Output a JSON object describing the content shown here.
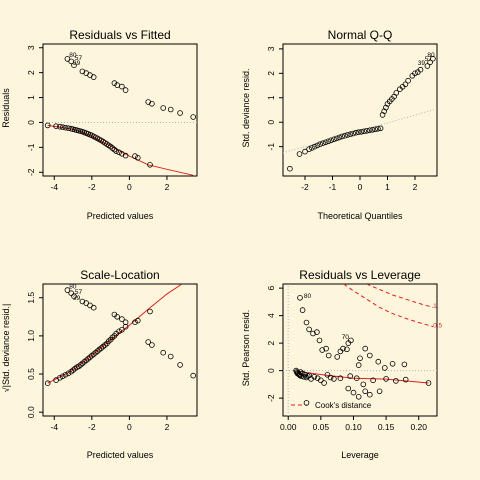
{
  "chart_data": [
    {
      "type": "scatter",
      "title": "Residuals vs Fitted",
      "xlabel": "Predicted values",
      "ylabel": "Residuals",
      "xlim": [
        -4.6,
        3.6
      ],
      "ylim": [
        -2.15,
        3.15
      ],
      "xticks": [
        -4,
        -2,
        0,
        2
      ],
      "yticks": [
        -2,
        -1,
        0,
        1,
        2,
        3
      ],
      "points": [
        [
          -4.35,
          -0.12
        ],
        [
          -3.9,
          -0.15
        ],
        [
          -3.7,
          -0.17
        ],
        [
          -3.55,
          -0.19
        ],
        [
          -3.4,
          -0.21
        ],
        [
          -3.25,
          -0.23
        ],
        [
          -3.1,
          -0.25
        ],
        [
          -3.0,
          -0.27
        ],
        [
          -2.9,
          -0.29
        ],
        [
          -2.8,
          -0.31
        ],
        [
          -2.7,
          -0.33
        ],
        [
          -2.6,
          -0.35
        ],
        [
          -2.5,
          -0.37
        ],
        [
          -2.4,
          -0.4
        ],
        [
          -2.3,
          -0.43
        ],
        [
          -2.2,
          -0.46
        ],
        [
          -2.1,
          -0.49
        ],
        [
          -2.0,
          -0.52
        ],
        [
          -1.9,
          -0.56
        ],
        [
          -1.8,
          -0.6
        ],
        [
          -1.7,
          -0.64
        ],
        [
          -1.6,
          -0.68
        ],
        [
          -1.5,
          -0.72
        ],
        [
          -1.4,
          -0.77
        ],
        [
          -1.3,
          -0.82
        ],
        [
          -1.2,
          -0.87
        ],
        [
          -1.1,
          -0.92
        ],
        [
          -1.0,
          -0.97
        ],
        [
          -0.9,
          -1.03
        ],
        [
          -0.8,
          -1.09
        ],
        [
          -0.7,
          -1.15
        ],
        [
          -0.55,
          -1.2
        ],
        [
          -0.4,
          -1.26
        ],
        [
          -0.2,
          -1.33
        ],
        [
          0.3,
          -1.35
        ],
        [
          0.45,
          -1.42
        ],
        [
          1.1,
          -1.7
        ],
        [
          -2.5,
          2.05
        ],
        [
          -2.3,
          1.98
        ],
        [
          -2.1,
          1.9
        ],
        [
          -1.9,
          1.82
        ],
        [
          -0.8,
          1.58
        ],
        [
          -0.65,
          1.5
        ],
        [
          -0.4,
          1.44
        ],
        [
          -0.2,
          1.3
        ],
        [
          1.0,
          0.82
        ],
        [
          1.2,
          0.75
        ],
        [
          1.8,
          0.58
        ],
        [
          2.2,
          0.52
        ],
        [
          2.7,
          0.38
        ],
        [
          3.4,
          0.22
        ],
        [
          -3.3,
          2.55
        ],
        [
          -3.1,
          2.45
        ],
        [
          -2.95,
          2.3
        ]
      ],
      "lines": [
        {
          "name": "fit",
          "color": "#e02020",
          "style": "solid",
          "points": [
            [
              -4.35,
              -0.12
            ],
            [
              -3.0,
              -0.27
            ],
            [
              -2.0,
              -0.55
            ],
            [
              -1.0,
              -0.95
            ],
            [
              0.0,
              -1.35
            ],
            [
              1.0,
              -1.7
            ],
            [
              2.0,
              -1.88
            ],
            [
              3.4,
              -2.12
            ]
          ]
        },
        {
          "name": "zero",
          "color": "#b4b4b4",
          "style": "dotted",
          "points": [
            [
              -4.6,
              0
            ],
            [
              3.6,
              0
            ]
          ]
        }
      ],
      "annotations": [
        {
          "text": "80",
          "x": -3.2,
          "y": 2.63
        },
        {
          "text": "57",
          "x": -2.9,
          "y": 2.5
        },
        {
          "text": "39",
          "x": -3.0,
          "y": 2.3
        }
      ]
    },
    {
      "type": "scatter",
      "title": "Normal Q-Q",
      "xlabel": "Theoretical Quantiles",
      "ylabel": "Std. deviance resid.",
      "xlim": [
        -2.8,
        2.8
      ],
      "ylim": [
        -2.2,
        3.2
      ],
      "xticks": [
        -2,
        -1,
        0,
        1,
        2
      ],
      "yticks": [
        -1,
        0,
        1,
        2,
        3
      ],
      "points": [
        [
          -2.55,
          -1.9
        ],
        [
          -2.2,
          -1.3
        ],
        [
          -2.0,
          -1.2
        ],
        [
          -1.85,
          -1.1
        ],
        [
          -1.75,
          -1.05
        ],
        [
          -1.65,
          -1.0
        ],
        [
          -1.55,
          -0.95
        ],
        [
          -1.45,
          -0.9
        ],
        [
          -1.35,
          -0.86
        ],
        [
          -1.25,
          -0.82
        ],
        [
          -1.15,
          -0.78
        ],
        [
          -1.05,
          -0.74
        ],
        [
          -0.95,
          -0.7
        ],
        [
          -0.85,
          -0.66
        ],
        [
          -0.75,
          -0.62
        ],
        [
          -0.65,
          -0.58
        ],
        [
          -0.55,
          -0.55
        ],
        [
          -0.45,
          -0.52
        ],
        [
          -0.35,
          -0.49
        ],
        [
          -0.25,
          -0.46
        ],
        [
          -0.15,
          -0.43
        ],
        [
          -0.05,
          -0.41
        ],
        [
          0.05,
          -0.39
        ],
        [
          0.15,
          -0.37
        ],
        [
          0.25,
          -0.35
        ],
        [
          0.35,
          -0.33
        ],
        [
          0.45,
          -0.31
        ],
        [
          0.55,
          -0.29
        ],
        [
          0.65,
          -0.27
        ],
        [
          0.75,
          -0.25
        ],
        [
          0.82,
          0.3
        ],
        [
          0.88,
          0.45
        ],
        [
          0.94,
          0.6
        ],
        [
          1.0,
          0.75
        ],
        [
          1.08,
          0.85
        ],
        [
          1.16,
          0.95
        ],
        [
          1.24,
          1.05
        ],
        [
          1.32,
          1.2
        ],
        [
          1.45,
          1.35
        ],
        [
          1.55,
          1.45
        ],
        [
          1.65,
          1.55
        ],
        [
          1.75,
          1.7
        ],
        [
          1.9,
          1.9
        ],
        [
          2.0,
          2.0
        ],
        [
          2.1,
          2.05
        ],
        [
          2.2,
          2.15
        ],
        [
          2.45,
          2.3
        ],
        [
          2.55,
          2.45
        ],
        [
          2.65,
          2.6
        ]
      ],
      "lines": [
        {
          "name": "qq-line",
          "color": "#b4b4b4",
          "style": "dotted",
          "points": [
            [
              -2.8,
              -1.25
            ],
            [
              2.8,
              0.55
            ]
          ]
        }
      ],
      "annotations": [
        {
          "text": "80",
          "x": 2.45,
          "y": 2.67
        },
        {
          "text": "57",
          "x": 2.35,
          "y": 2.5
        },
        {
          "text": "39",
          "x": 2.1,
          "y": 2.35
        }
      ]
    },
    {
      "type": "scatter",
      "title": "Scale-Location",
      "xlabel": "Predicted values",
      "ylabel": "√|Std. deviance resid.|",
      "xlim": [
        -4.6,
        3.6
      ],
      "ylim": [
        -0.05,
        1.68
      ],
      "xticks": [
        -4,
        -2,
        0,
        2
      ],
      "yticks": [
        0.0,
        0.5,
        1.0,
        1.5
      ],
      "points": [
        [
          -4.35,
          0.38
        ],
        [
          -3.9,
          0.42
        ],
        [
          -3.7,
          0.45
        ],
        [
          -3.55,
          0.47
        ],
        [
          -3.4,
          0.49
        ],
        [
          -3.25,
          0.51
        ],
        [
          -3.1,
          0.53
        ],
        [
          -3.0,
          0.55
        ],
        [
          -2.9,
          0.57
        ],
        [
          -2.8,
          0.59
        ],
        [
          -2.7,
          0.6
        ],
        [
          -2.6,
          0.62
        ],
        [
          -2.5,
          0.64
        ],
        [
          -2.4,
          0.66
        ],
        [
          -2.3,
          0.68
        ],
        [
          -2.2,
          0.7
        ],
        [
          -2.1,
          0.72
        ],
        [
          -2.0,
          0.74
        ],
        [
          -1.9,
          0.76
        ],
        [
          -1.8,
          0.78
        ],
        [
          -1.7,
          0.8
        ],
        [
          -1.6,
          0.82
        ],
        [
          -1.5,
          0.84
        ],
        [
          -1.4,
          0.86
        ],
        [
          -1.3,
          0.88
        ],
        [
          -1.2,
          0.9
        ],
        [
          -1.1,
          0.93
        ],
        [
          -1.0,
          0.95
        ],
        [
          -0.9,
          0.98
        ],
        [
          -0.8,
          1.0
        ],
        [
          -0.7,
          1.03
        ],
        [
          -0.55,
          1.06
        ],
        [
          -0.4,
          1.08
        ],
        [
          -0.2,
          1.12
        ],
        [
          0.3,
          1.18
        ],
        [
          0.45,
          1.2
        ],
        [
          1.1,
          1.32
        ],
        [
          -2.5,
          1.45
        ],
        [
          -2.3,
          1.43
        ],
        [
          -2.1,
          1.4
        ],
        [
          -1.9,
          1.37
        ],
        [
          -0.8,
          1.28
        ],
        [
          -0.65,
          1.25
        ],
        [
          -0.4,
          1.22
        ],
        [
          -0.2,
          1.18
        ],
        [
          1.0,
          0.92
        ],
        [
          1.2,
          0.88
        ],
        [
          1.8,
          0.78
        ],
        [
          2.2,
          0.73
        ],
        [
          2.7,
          0.62
        ],
        [
          3.4,
          0.48
        ],
        [
          -3.3,
          1.6
        ],
        [
          -3.1,
          1.56
        ],
        [
          -2.95,
          1.52
        ]
      ],
      "lines": [
        {
          "name": "smoother",
          "color": "#e02020",
          "style": "solid",
          "points": [
            [
              -4.35,
              0.38
            ],
            [
              -3.0,
              0.55
            ],
            [
              -2.0,
              0.74
            ],
            [
              -1.0,
              0.95
            ],
            [
              0.0,
              1.14
            ],
            [
              1.0,
              1.35
            ],
            [
              2.0,
              1.55
            ],
            [
              2.8,
              1.68
            ]
          ]
        }
      ],
      "annotations": [
        {
          "text": "80",
          "x": -3.2,
          "y": 1.62
        },
        {
          "text": "57",
          "x": -2.9,
          "y": 1.55
        },
        {
          "text": "39",
          "x": -3.0,
          "y": 1.47
        }
      ]
    },
    {
      "type": "scatter",
      "title": "Residuals vs Leverage",
      "xlabel": "Leverage",
      "ylabel": "Std. Pearson resid.",
      "xlim": [
        -0.008,
        0.228
      ],
      "ylim": [
        -3.3,
        6.3
      ],
      "xticks": [
        0.0,
        0.05,
        0.1,
        0.15,
        0.2
      ],
      "yticks": [
        -2,
        0,
        2,
        4,
        6
      ],
      "points": [
        [
          0.018,
          5.3
        ],
        [
          0.022,
          4.4
        ],
        [
          0.028,
          3.5
        ],
        [
          0.032,
          3.0
        ],
        [
          0.038,
          2.7
        ],
        [
          0.044,
          2.8
        ],
        [
          0.048,
          2.2
        ],
        [
          0.052,
          1.5
        ],
        [
          0.058,
          1.6
        ],
        [
          0.062,
          1.1
        ],
        [
          0.075,
          1.0
        ],
        [
          0.08,
          1.4
        ],
        [
          0.084,
          1.6
        ],
        [
          0.09,
          1.55
        ],
        [
          0.092,
          2.0
        ],
        [
          0.096,
          2.2
        ],
        [
          0.108,
          0.4
        ],
        [
          0.11,
          0.9
        ],
        [
          0.118,
          1.6
        ],
        [
          0.125,
          1.1
        ],
        [
          0.138,
          0.65
        ],
        [
          0.148,
          0.2
        ],
        [
          0.16,
          0.5
        ],
        [
          0.178,
          0.45
        ],
        [
          0.012,
          0.0
        ],
        [
          0.013,
          -0.1
        ],
        [
          0.014,
          -0.2
        ],
        [
          0.015,
          -0.15
        ],
        [
          0.016,
          -0.25
        ],
        [
          0.017,
          -0.3
        ],
        [
          0.018,
          -0.35
        ],
        [
          0.019,
          -0.1
        ],
        [
          0.02,
          -0.4
        ],
        [
          0.022,
          -0.2
        ],
        [
          0.024,
          -0.45
        ],
        [
          0.026,
          -0.3
        ],
        [
          0.028,
          -0.5
        ],
        [
          0.03,
          -0.4
        ],
        [
          0.032,
          -0.35
        ],
        [
          0.035,
          -0.6
        ],
        [
          0.04,
          -0.45
        ],
        [
          0.045,
          -0.55
        ],
        [
          0.05,
          -0.7
        ],
        [
          0.055,
          -0.9
        ],
        [
          0.06,
          -0.3
        ],
        [
          0.065,
          -0.5
        ],
        [
          0.07,
          -0.6
        ],
        [
          0.08,
          -0.55
        ],
        [
          0.095,
          -0.4
        ],
        [
          0.105,
          -0.55
        ],
        [
          0.115,
          -1.0
        ],
        [
          0.13,
          -0.7
        ],
        [
          0.15,
          -0.6
        ],
        [
          0.165,
          -0.75
        ],
        [
          0.18,
          -0.65
        ],
        [
          0.215,
          -0.9
        ],
        [
          0.092,
          -1.3
        ],
        [
          0.1,
          -1.6
        ],
        [
          0.108,
          -1.9
        ],
        [
          0.118,
          -1.5
        ],
        [
          0.125,
          -1.75
        ],
        [
          0.14,
          -1.5
        ],
        [
          0.028,
          -2.35
        ]
      ],
      "lines": [
        {
          "name": "smoother",
          "color": "#e02020",
          "style": "solid",
          "points": [
            [
              0.008,
              0.0
            ],
            [
              0.03,
              -0.15
            ],
            [
              0.06,
              -0.35
            ],
            [
              0.1,
              -0.55
            ],
            [
              0.15,
              -0.62
            ],
            [
              0.215,
              -0.9
            ]
          ]
        },
        {
          "name": "cooks-1",
          "color": "#e02020",
          "style": "dashed",
          "points": [
            [
              0.12,
              6.3
            ],
            [
              0.14,
              5.9
            ],
            [
              0.16,
              5.5
            ],
            [
              0.18,
              5.2
            ],
            [
              0.2,
              4.9
            ],
            [
              0.222,
              4.6
            ]
          ]
        },
        {
          "name": "cooks-0.5",
          "color": "#e02020",
          "style": "dashed",
          "points": [
            [
              0.085,
              6.3
            ],
            [
              0.1,
              5.8
            ],
            [
              0.12,
              5.2
            ],
            [
              0.14,
              4.6
            ],
            [
              0.16,
              4.15
            ],
            [
              0.18,
              3.8
            ],
            [
              0.2,
              3.5
            ],
            [
              0.222,
              3.2
            ]
          ]
        },
        {
          "name": "zero",
          "color": "#b4b4b4",
          "style": "dotted",
          "points": [
            [
              -0.008,
              0
            ],
            [
              0.228,
              0
            ]
          ]
        },
        {
          "name": "lev0",
          "color": "#b4b4b4",
          "style": "dotted",
          "points": [
            [
              0.0,
              -3.3
            ],
            [
              0.0,
              6.3
            ]
          ]
        }
      ],
      "annotations": [
        {
          "text": "80",
          "x": 0.024,
          "y": 5.3
        },
        {
          "text": "70",
          "x": 0.082,
          "y": 2.3
        },
        {
          "text": "1",
          "x": 0.222,
          "y": 4.55,
          "color": "#e02020"
        },
        {
          "text": "0.5",
          "x": 0.222,
          "y": 3.15,
          "color": "#e02020"
        }
      ],
      "legend": {
        "label": "Cook's distance",
        "placement": "bottom-left",
        "color": "#e02020"
      }
    }
  ]
}
